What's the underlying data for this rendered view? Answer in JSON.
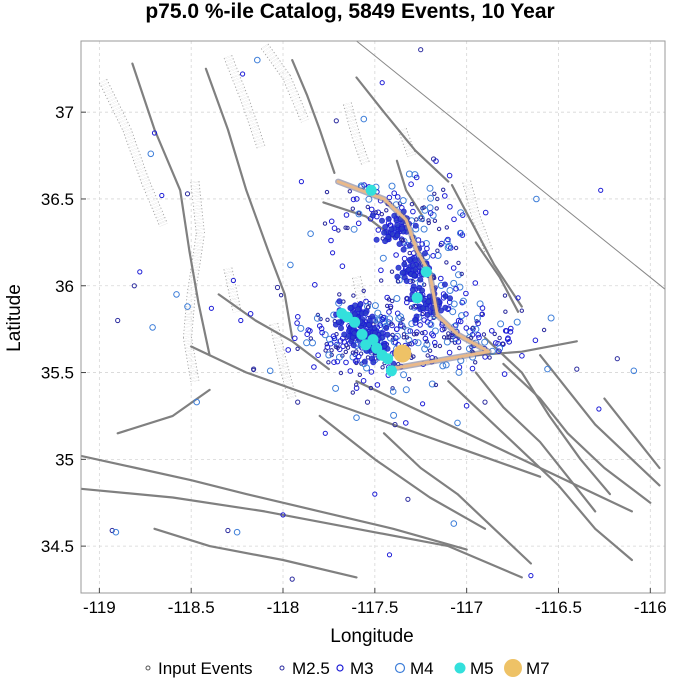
{
  "chart_data": {
    "type": "scatter",
    "title": "p75.0 %-ile Catalog, 5849 Events, 10 Year",
    "xlabel": "Longitude",
    "ylabel": "Latitude",
    "xlim": [
      -119.1,
      -115.92
    ],
    "ylim": [
      34.23,
      37.41
    ],
    "x_ticks": [
      -119,
      -118.5,
      -118,
      -117.5,
      -117,
      -116.5,
      -116
    ],
    "x_tick_labels": [
      "-119",
      "-118.5",
      "-118",
      "-117.5",
      "-117",
      "-116.5",
      "-116"
    ],
    "y_ticks": [
      34.5,
      35,
      35.5,
      36,
      36.5,
      37
    ],
    "y_tick_labels": [
      "34.5",
      "35",
      "35.5",
      "36",
      "36.5",
      "37"
    ],
    "grid": true,
    "legend_position": "bottom",
    "legend": [
      {
        "label": "Input Events",
        "marker": "input"
      },
      {
        "label": "M2.5",
        "marker": "m25"
      },
      {
        "label": "M3",
        "marker": "m3"
      },
      {
        "label": "M4",
        "marker": "m4"
      },
      {
        "label": "M5",
        "marker": "m5"
      },
      {
        "label": "M7",
        "marker": "m7"
      }
    ],
    "colors": {
      "input": "#555555",
      "m25": "#2a2a9e",
      "m3": "#1c1cd6",
      "m4": "#3f7fd9",
      "m5": "#33e0dc",
      "m7": "#eec266",
      "fault": "#808080",
      "rupture": "#e9b98a"
    },
    "clusters": [
      {
        "lon": -117.55,
        "lat": 35.7,
        "spread_lon": 0.18,
        "spread_lat": 0.12,
        "n": 260
      },
      {
        "lon": -117.25,
        "lat": 36.05,
        "spread_lon": 0.14,
        "spread_lat": 0.28,
        "n": 170
      },
      {
        "lon": -117.0,
        "lat": 35.7,
        "spread_lon": 0.18,
        "spread_lat": 0.1,
        "n": 90
      },
      {
        "lon": -117.45,
        "lat": 36.45,
        "spread_lon": 0.2,
        "spread_lat": 0.1,
        "n": 70
      }
    ],
    "m5_events": [
      {
        "lon": -117.68,
        "lat": 35.84
      },
      {
        "lon": -117.65,
        "lat": 35.82
      },
      {
        "lon": -117.61,
        "lat": 35.79
      },
      {
        "lon": -117.57,
        "lat": 35.72
      },
      {
        "lon": -117.55,
        "lat": 35.66
      },
      {
        "lon": -117.51,
        "lat": 35.69
      },
      {
        "lon": -117.49,
        "lat": 35.64
      },
      {
        "lon": -117.46,
        "lat": 35.6
      },
      {
        "lon": -117.43,
        "lat": 35.58
      },
      {
        "lon": -117.22,
        "lat": 36.08
      },
      {
        "lon": -117.27,
        "lat": 35.93
      },
      {
        "lon": -117.41,
        "lat": 35.51
      },
      {
        "lon": -117.52,
        "lat": 36.55
      }
    ],
    "m7_events": [
      {
        "lon": -117.35,
        "lat": 35.61
      }
    ],
    "rupture_trace": [
      [
        -117.7,
        36.6
      ],
      [
        -117.45,
        36.5
      ],
      [
        -117.33,
        36.38
      ],
      [
        -117.27,
        36.2
      ],
      [
        -117.2,
        36.07
      ],
      [
        -117.18,
        35.95
      ],
      [
        -117.16,
        35.83
      ],
      [
        -117.05,
        35.72
      ],
      [
        -116.88,
        35.62
      ],
      [
        -117.1,
        35.58
      ],
      [
        -117.42,
        35.52
      ]
    ],
    "scattered_events": [
      [
        -118.72,
        36.76
      ],
      [
        -118.7,
        36.88
      ],
      [
        -118.52,
        36.53
      ],
      [
        -118.58,
        35.95
      ],
      [
        -118.78,
        36.08
      ],
      [
        -118.9,
        35.8
      ],
      [
        -118.52,
        35.88
      ],
      [
        -118.27,
        36.03
      ],
      [
        -118.16,
        35.52
      ],
      [
        -117.85,
        36.3
      ],
      [
        -117.9,
        36.6
      ],
      [
        -117.18,
        36.73
      ],
      [
        -116.62,
        36.5
      ],
      [
        -116.27,
        36.55
      ],
      [
        -116.4,
        35.52
      ],
      [
        -116.09,
        35.51
      ],
      [
        -116.28,
        35.29
      ],
      [
        -116.18,
        35.58
      ],
      [
        -116.56,
        35.52
      ],
      [
        -116.72,
        35.93
      ],
      [
        -116.9,
        35.33
      ],
      [
        -117.05,
        35.21
      ],
      [
        -117.24,
        35.32
      ],
      [
        -117.39,
        35.2
      ],
      [
        -117.6,
        35.24
      ],
      [
        -117.77,
        35.15
      ],
      [
        -117.92,
        35.33
      ],
      [
        -118.07,
        35.51
      ],
      [
        -118.23,
        35.8
      ],
      [
        -118.03,
        35.99
      ],
      [
        -117.96,
        36.12
      ],
      [
        -117.73,
        36.19
      ],
      [
        -117.71,
        36.95
      ],
      [
        -117.56,
        36.96
      ],
      [
        -117.46,
        37.17
      ],
      [
        -117.25,
        37.36
      ],
      [
        -118.14,
        37.3
      ],
      [
        -118.22,
        37.22
      ],
      [
        -117.54,
        35.33
      ],
      [
        -117.4,
        35.39
      ],
      [
        -117.5,
        34.8
      ],
      [
        -117.32,
        34.77
      ],
      [
        -117.07,
        34.63
      ],
      [
        -117.42,
        34.45
      ],
      [
        -118.3,
        34.59
      ],
      [
        -118.25,
        34.58
      ],
      [
        -118.0,
        34.68
      ],
      [
        -118.93,
        34.59
      ],
      [
        -118.91,
        34.58
      ],
      [
        -116.65,
        34.33
      ],
      [
        -117.95,
        34.31
      ],
      [
        -118.47,
        35.33
      ],
      [
        -118.66,
        36.52
      ],
      [
        -118.81,
        36.0
      ],
      [
        -118.71,
        35.76
      ],
      [
        -118.39,
        35.87
      ]
    ],
    "faults": [
      [
        [
          -118.82,
          37.28
        ],
        [
          -118.7,
          36.9
        ],
        [
          -118.56,
          36.55
        ],
        [
          -118.51,
          36.2
        ],
        [
          -118.46,
          35.9
        ],
        [
          -118.4,
          35.6
        ]
      ],
      [
        [
          -118.42,
          37.25
        ],
        [
          -118.3,
          36.9
        ],
        [
          -118.2,
          36.55
        ],
        [
          -118.08,
          36.2
        ],
        [
          -117.99,
          35.95
        ],
        [
          -117.95,
          35.7
        ]
      ],
      [
        [
          -117.95,
          37.3
        ],
        [
          -117.87,
          37.1
        ],
        [
          -117.8,
          36.9
        ],
        [
          -117.72,
          36.65
        ]
      ],
      [
        [
          -117.6,
          37.2
        ],
        [
          -117.45,
          37.0
        ],
        [
          -117.28,
          36.78
        ],
        [
          -117.1,
          36.6
        ]
      ],
      [
        [
          -117.08,
          36.58
        ],
        [
          -116.98,
          36.38
        ],
        [
          -116.85,
          36.12
        ],
        [
          -116.7,
          35.88
        ]
      ],
      [
        [
          -118.5,
          35.65
        ],
        [
          -118.2,
          35.5
        ],
        [
          -117.8,
          35.35
        ],
        [
          -117.4,
          35.2
        ],
        [
          -117.0,
          35.05
        ],
        [
          -116.6,
          34.9
        ]
      ],
      [
        [
          -119.1,
          35.02
        ],
        [
          -118.8,
          34.95
        ],
        [
          -118.5,
          34.88
        ],
        [
          -118.2,
          34.8
        ],
        [
          -117.8,
          34.7
        ],
        [
          -117.4,
          34.6
        ],
        [
          -117.0,
          34.48
        ]
      ],
      [
        [
          -119.1,
          34.83
        ],
        [
          -118.6,
          34.78
        ],
        [
          -118.1,
          34.7
        ],
        [
          -117.6,
          34.6
        ],
        [
          -117.1,
          34.5
        ],
        [
          -116.7,
          34.32
        ]
      ],
      [
        [
          -118.7,
          34.6
        ],
        [
          -118.4,
          34.5
        ],
        [
          -118.0,
          34.42
        ],
        [
          -117.6,
          34.32
        ]
      ],
      [
        [
          -117.6,
          35.45
        ],
        [
          -117.3,
          35.3
        ],
        [
          -117.0,
          35.15
        ],
        [
          -116.7,
          35.0
        ],
        [
          -116.4,
          34.85
        ],
        [
          -116.1,
          34.7
        ]
      ],
      [
        [
          -117.1,
          35.45
        ],
        [
          -116.9,
          35.25
        ],
        [
          -116.7,
          35.05
        ],
        [
          -116.5,
          34.85
        ],
        [
          -116.3,
          34.6
        ],
        [
          -116.1,
          34.42
        ]
      ],
      [
        [
          -116.95,
          35.5
        ],
        [
          -116.8,
          35.3
        ],
        [
          -116.6,
          35.1
        ],
        [
          -116.45,
          34.9
        ],
        [
          -116.3,
          34.7
        ]
      ],
      [
        [
          -116.8,
          35.55
        ],
        [
          -116.6,
          35.35
        ],
        [
          -116.45,
          35.15
        ],
        [
          -116.25,
          34.95
        ],
        [
          -116.0,
          34.75
        ]
      ],
      [
        [
          -116.6,
          35.6
        ],
        [
          -116.45,
          35.4
        ],
        [
          -116.3,
          35.2
        ],
        [
          -116.1,
          35.0
        ],
        [
          -115.95,
          34.85
        ]
      ],
      [
        [
          -117.8,
          35.25
        ],
        [
          -117.5,
          35.0
        ],
        [
          -117.2,
          34.78
        ],
        [
          -116.9,
          34.6
        ]
      ],
      [
        [
          -117.45,
          35.15
        ],
        [
          -117.25,
          34.95
        ],
        [
          -117.05,
          34.8
        ],
        [
          -116.85,
          34.6
        ],
        [
          -116.65,
          34.4
        ]
      ],
      [
        [
          -116.95,
          35.6
        ],
        [
          -116.7,
          35.62
        ],
        [
          -116.4,
          35.68
        ]
      ],
      [
        [
          -118.35,
          35.95
        ],
        [
          -118.15,
          35.8
        ],
        [
          -117.95,
          35.68
        ],
        [
          -117.75,
          35.52
        ]
      ],
      [
        [
          -117.78,
          36.48
        ],
        [
          -117.55,
          36.4
        ],
        [
          -117.4,
          36.28
        ]
      ],
      [
        [
          -117.38,
          36.72
        ],
        [
          -117.33,
          36.55
        ],
        [
          -117.24,
          36.4
        ]
      ],
      [
        [
          -116.95,
          36.25
        ],
        [
          -116.82,
          36.05
        ],
        [
          -116.72,
          35.85
        ]
      ],
      [
        [
          -116.9,
          35.7
        ],
        [
          -116.7,
          35.5
        ],
        [
          -116.55,
          35.25
        ],
        [
          -116.38,
          35.0
        ],
        [
          -116.22,
          34.8
        ]
      ],
      [
        [
          -116.25,
          35.35
        ],
        [
          -116.1,
          35.15
        ],
        [
          -115.95,
          34.95
        ]
      ],
      [
        [
          -118.9,
          35.15
        ],
        [
          -118.6,
          35.25
        ],
        [
          -118.4,
          35.4
        ]
      ]
    ],
    "fault_zones": [
      [
        [
          -118.98,
          37.18
        ],
        [
          -118.85,
          36.9
        ],
        [
          -118.75,
          36.6
        ],
        [
          -118.65,
          36.35
        ]
      ],
      [
        [
          -118.3,
          37.32
        ],
        [
          -118.2,
          37.05
        ],
        [
          -118.12,
          36.8
        ]
      ],
      [
        [
          -118.48,
          36.6
        ],
        [
          -118.45,
          36.3
        ],
        [
          -118.5,
          35.95
        ],
        [
          -118.52,
          35.7
        ],
        [
          -118.48,
          35.45
        ]
      ],
      [
        [
          -118.1,
          37.38
        ],
        [
          -117.98,
          37.2
        ],
        [
          -117.88,
          36.95
        ]
      ],
      [
        [
          -117.65,
          37.05
        ],
        [
          -117.6,
          36.85
        ],
        [
          -117.55,
          36.7
        ]
      ],
      [
        [
          -117.0,
          36.6
        ],
        [
          -116.95,
          36.4
        ],
        [
          -116.88,
          36.2
        ]
      ],
      [
        [
          -118.3,
          36.1
        ],
        [
          -118.25,
          35.85
        ]
      ],
      [
        [
          -118.05,
          35.78
        ],
        [
          -118.0,
          35.55
        ],
        [
          -117.95,
          35.35
        ]
      ],
      [
        [
          -117.35,
          36.9
        ],
        [
          -117.3,
          36.75
        ]
      ],
      [
        [
          -117.6,
          36.05
        ],
        [
          -117.55,
          35.8
        ]
      ]
    ],
    "state_border": [
      [
        -117.6,
        37.41
      ],
      [
        -115.92,
        35.98
      ]
    ]
  }
}
